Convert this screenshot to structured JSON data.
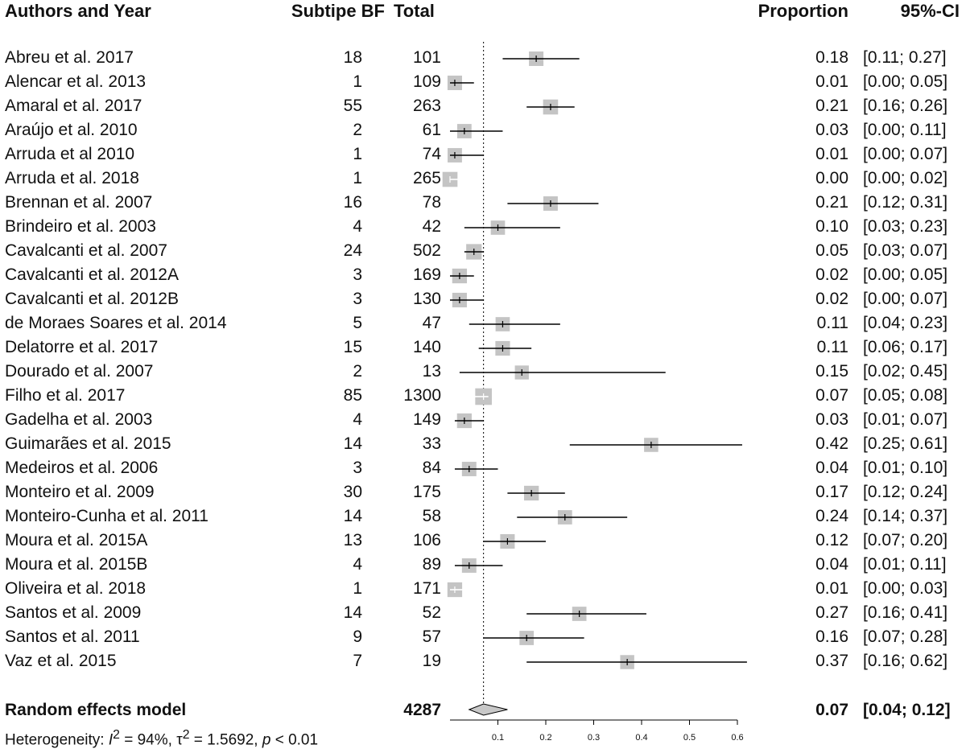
{
  "header": {
    "study": "Authors and Year",
    "events": "Subtipe BF",
    "total": "Total",
    "proportion": "Proportion",
    "ci": "95%-CI"
  },
  "chart_data": {
    "type": "forest",
    "xlim": [
      0,
      0.6
    ],
    "xticks": [
      0.1,
      0.2,
      0.3,
      0.4,
      0.5,
      0.6
    ],
    "xtick_labels": [
      "0.1",
      "0.2",
      "0.3",
      "0.4",
      "0.5",
      "0.6"
    ],
    "reference_line": 0.07,
    "studies": [
      {
        "name": "Abreu et al. 2017",
        "events": "18",
        "total": "101",
        "proportion": 0.18,
        "prop_text": "0.18",
        "lower": 0.11,
        "upper": 0.27,
        "ci_text": "[0.11; 0.27]"
      },
      {
        "name": "Alencar et al. 2013",
        "events": "1",
        "total": "109",
        "proportion": 0.01,
        "prop_text": "0.01",
        "lower": 0.0,
        "upper": 0.05,
        "ci_text": "[0.00; 0.05]"
      },
      {
        "name": "Amaral et al. 2017",
        "events": "55",
        "total": "263",
        "proportion": 0.21,
        "prop_text": "0.21",
        "lower": 0.16,
        "upper": 0.26,
        "ci_text": "[0.16; 0.26]"
      },
      {
        "name": "Araújo et al. 2010",
        "events": "2",
        "total": "61",
        "proportion": 0.03,
        "prop_text": "0.03",
        "lower": 0.0,
        "upper": 0.11,
        "ci_text": "[0.00; 0.11]"
      },
      {
        "name": "Arruda et al 2010",
        "events": "1",
        "total": "74",
        "proportion": 0.01,
        "prop_text": "0.01",
        "lower": 0.0,
        "upper": 0.07,
        "ci_text": "[0.00; 0.07]"
      },
      {
        "name": "Arruda et al. 2018",
        "events": "1",
        "total": "265",
        "proportion": 0.0,
        "prop_text": "0.00",
        "lower": 0.0,
        "upper": 0.02,
        "ci_text": "[0.00; 0.02]"
      },
      {
        "name": "Brennan et al. 2007",
        "events": "16",
        "total": "78",
        "proportion": 0.21,
        "prop_text": "0.21",
        "lower": 0.12,
        "upper": 0.31,
        "ci_text": "[0.12; 0.31]"
      },
      {
        "name": "Brindeiro et al. 2003",
        "events": "4",
        "total": "42",
        "proportion": 0.1,
        "prop_text": "0.10",
        "lower": 0.03,
        "upper": 0.23,
        "ci_text": "[0.03; 0.23]"
      },
      {
        "name": "Cavalcanti et al. 2007",
        "events": "24",
        "total": "502",
        "proportion": 0.05,
        "prop_text": "0.05",
        "lower": 0.03,
        "upper": 0.07,
        "ci_text": "[0.03; 0.07]"
      },
      {
        "name": "Cavalcanti et al. 2012A",
        "events": "3",
        "total": "169",
        "proportion": 0.02,
        "prop_text": "0.02",
        "lower": 0.0,
        "upper": 0.05,
        "ci_text": "[0.00; 0.05]"
      },
      {
        "name": "Cavalcanti et al. 2012B",
        "events": "3",
        "total": "130",
        "proportion": 0.02,
        "prop_text": "0.02",
        "lower": 0.0,
        "upper": 0.07,
        "ci_text": "[0.00; 0.07]"
      },
      {
        "name": "de Moraes Soares et al. 2014",
        "events": "5",
        "total": "47",
        "proportion": 0.11,
        "prop_text": "0.11",
        "lower": 0.04,
        "upper": 0.23,
        "ci_text": "[0.04; 0.23]"
      },
      {
        "name": "Delatorre et al. 2017",
        "events": "15",
        "total": "140",
        "proportion": 0.11,
        "prop_text": "0.11",
        "lower": 0.06,
        "upper": 0.17,
        "ci_text": "[0.06; 0.17]"
      },
      {
        "name": "Dourado et al. 2007",
        "events": "2",
        "total": "13",
        "proportion": 0.15,
        "prop_text": "0.15",
        "lower": 0.02,
        "upper": 0.45,
        "ci_text": "[0.02; 0.45]"
      },
      {
        "name": "Filho et al. 2017",
        "events": "85",
        "total": "1300",
        "proportion": 0.07,
        "prop_text": "0.07",
        "lower": 0.05,
        "upper": 0.08,
        "ci_text": "[0.05; 0.08]"
      },
      {
        "name": "Gadelha et al. 2003",
        "events": "4",
        "total": "149",
        "proportion": 0.03,
        "prop_text": "0.03",
        "lower": 0.01,
        "upper": 0.07,
        "ci_text": "[0.01; 0.07]"
      },
      {
        "name": "Guimarães et al. 2015",
        "events": "14",
        "total": "33",
        "proportion": 0.42,
        "prop_text": "0.42",
        "lower": 0.25,
        "upper": 0.61,
        "ci_text": "[0.25; 0.61]"
      },
      {
        "name": "Medeiros et al. 2006",
        "events": "3",
        "total": "84",
        "proportion": 0.04,
        "prop_text": "0.04",
        "lower": 0.01,
        "upper": 0.1,
        "ci_text": "[0.01; 0.10]"
      },
      {
        "name": "Monteiro et al. 2009",
        "events": "30",
        "total": "175",
        "proportion": 0.17,
        "prop_text": "0.17",
        "lower": 0.12,
        "upper": 0.24,
        "ci_text": "[0.12; 0.24]"
      },
      {
        "name": "Monteiro-Cunha et al. 2011",
        "events": "14",
        "total": "58",
        "proportion": 0.24,
        "prop_text": "0.24",
        "lower": 0.14,
        "upper": 0.37,
        "ci_text": "[0.14; 0.37]"
      },
      {
        "name": "Moura et al. 2015A",
        "events": "13",
        "total": "106",
        "proportion": 0.12,
        "prop_text": "0.12",
        "lower": 0.07,
        "upper": 0.2,
        "ci_text": "[0.07; 0.20]"
      },
      {
        "name": "Moura et al. 2015B",
        "events": "4",
        "total": "89",
        "proportion": 0.04,
        "prop_text": "0.04",
        "lower": 0.01,
        "upper": 0.11,
        "ci_text": "[0.01; 0.11]"
      },
      {
        "name": "Oliveira et al. 2018",
        "events": "1",
        "total": "171",
        "proportion": 0.01,
        "prop_text": "0.01",
        "lower": 0.0,
        "upper": 0.03,
        "ci_text": "[0.00; 0.03]"
      },
      {
        "name": "Santos et al. 2009",
        "events": "14",
        "total": "52",
        "proportion": 0.27,
        "prop_text": "0.27",
        "lower": 0.16,
        "upper": 0.41,
        "ci_text": "[0.16; 0.41]"
      },
      {
        "name": "Santos et al. 2011",
        "events": "9",
        "total": "57",
        "proportion": 0.16,
        "prop_text": "0.16",
        "lower": 0.07,
        "upper": 0.28,
        "ci_text": "[0.07; 0.28]"
      },
      {
        "name": "Vaz et al. 2015",
        "events": "7",
        "total": "19",
        "proportion": 0.37,
        "prop_text": "0.37",
        "lower": 0.16,
        "upper": 0.62,
        "ci_text": "[0.16; 0.62]"
      }
    ],
    "summary": {
      "label": "Random effects model",
      "total": "4287",
      "proportion": 0.07,
      "prop_text": "0.07",
      "lower": 0.04,
      "upper": 0.12,
      "ci_text": "[0.04; 0.12]"
    },
    "heterogeneity": {
      "prefix": "Heterogeneity: ",
      "i2_symbol": "I",
      "i2_sup": "2",
      "i2_value": " = 94%, ",
      "tau2_symbol": "τ",
      "tau2_sup": "2",
      "tau2_value": " = 1.5692, ",
      "p_symbol": "p",
      "p_value": " < 0.01"
    },
    "colors": {
      "square": "#c4c4c4",
      "line": "#000000",
      "diamond": "#c8c8c8"
    }
  }
}
